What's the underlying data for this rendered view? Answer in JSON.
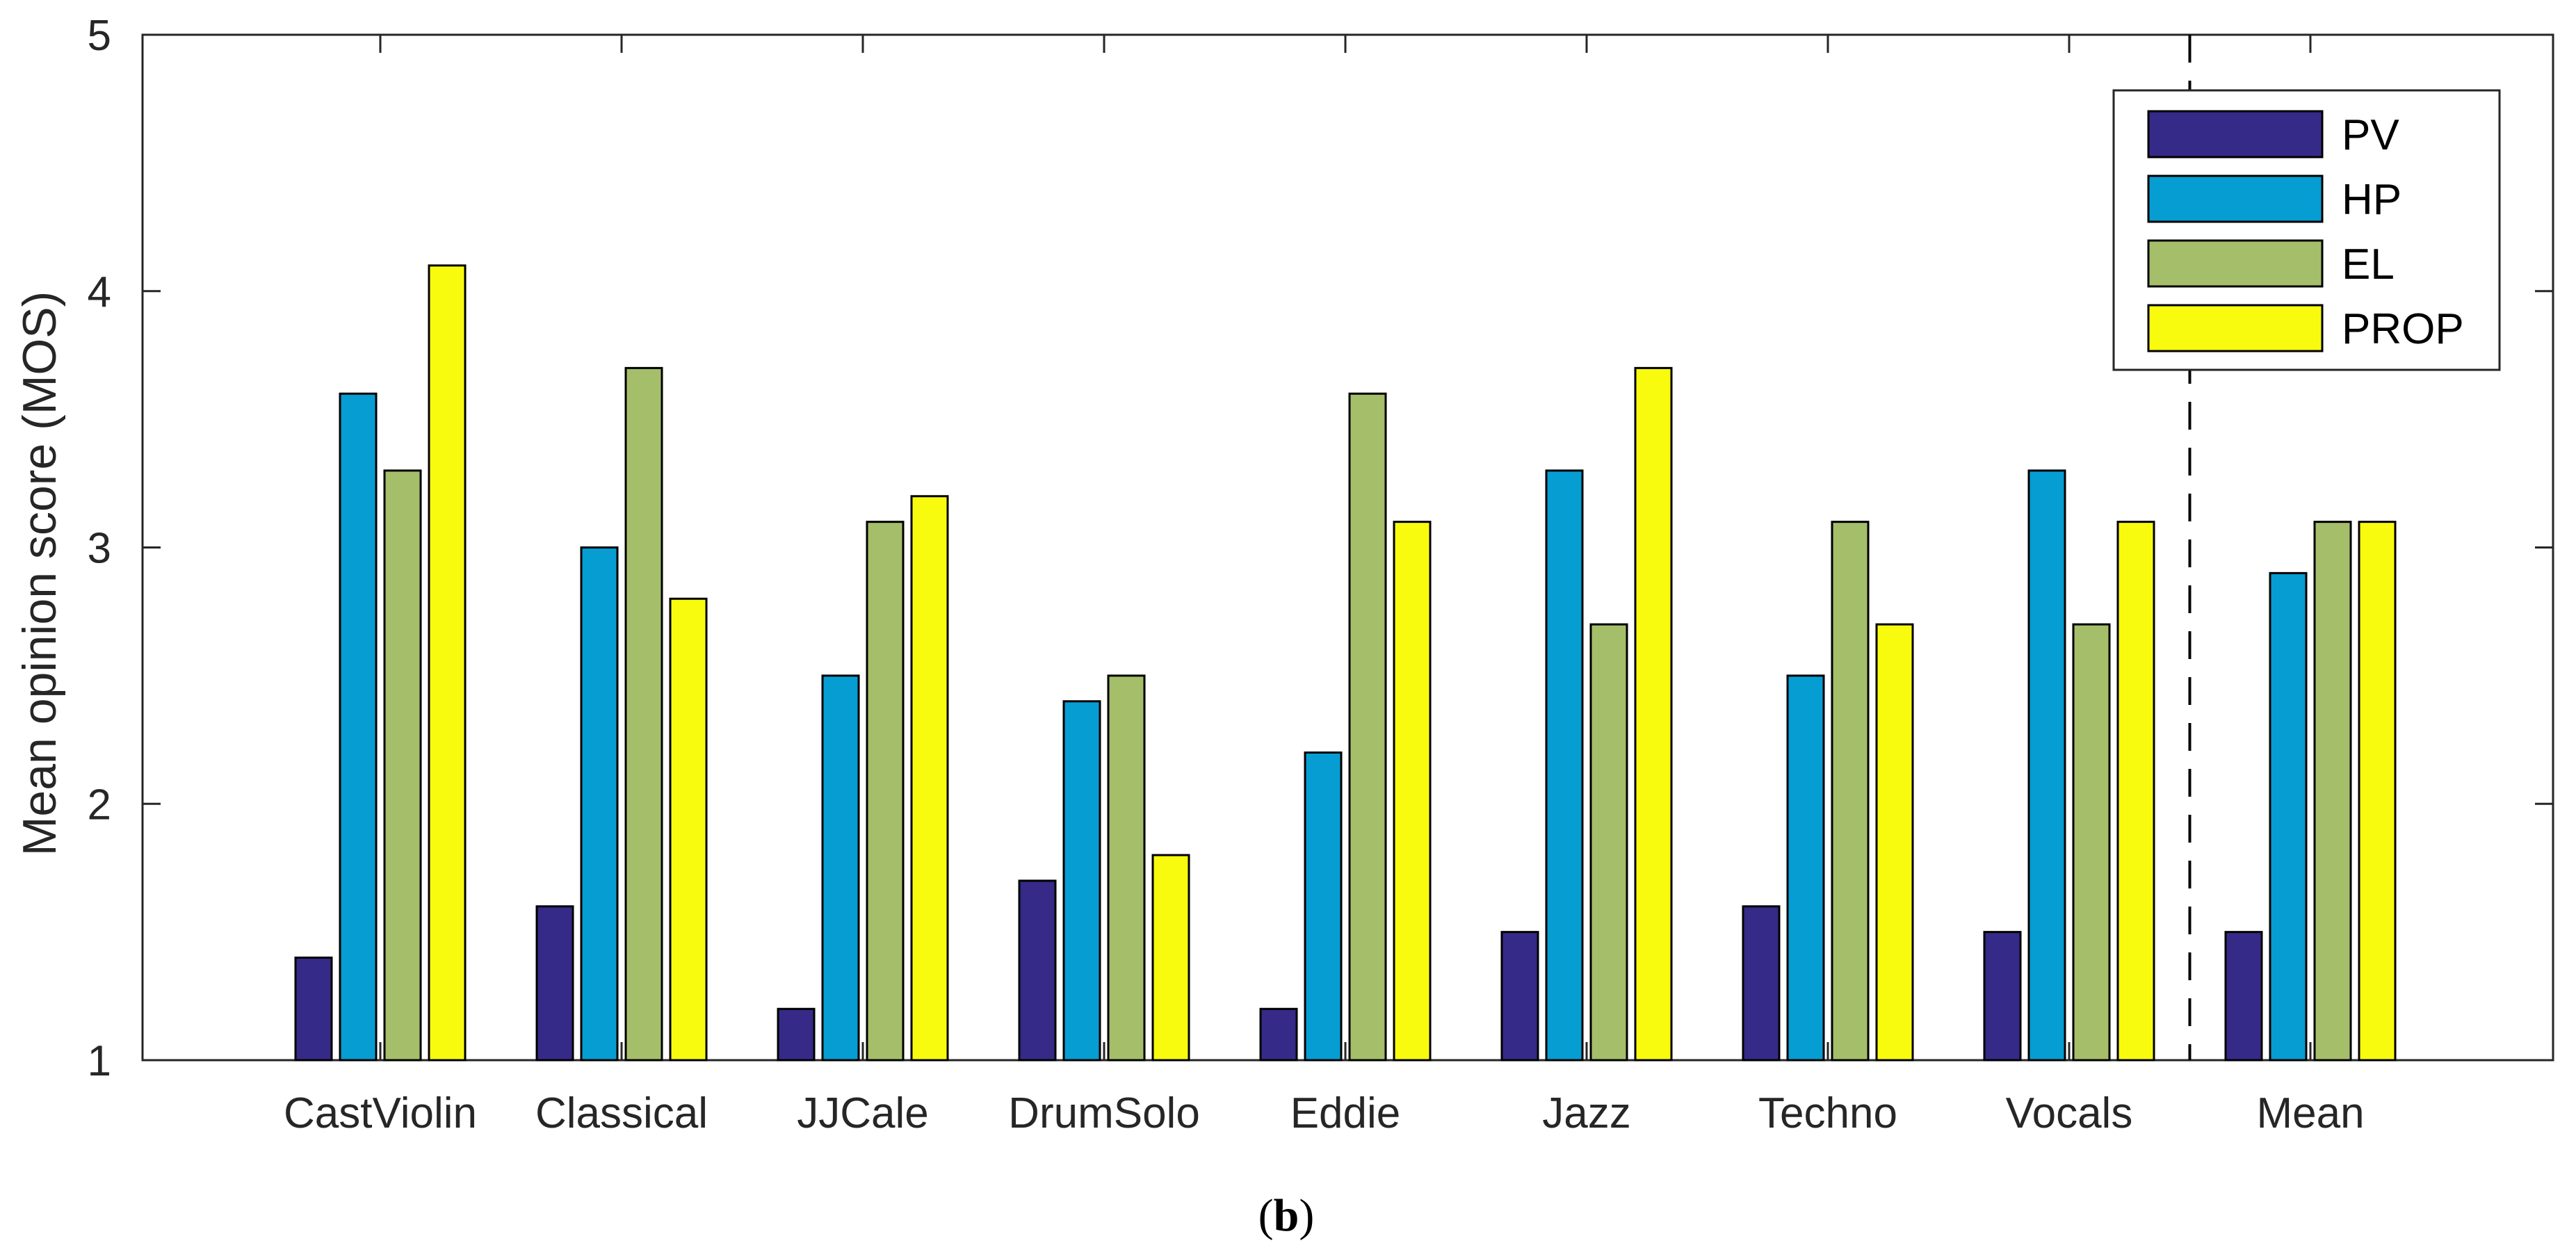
{
  "chart_data": {
    "type": "bar",
    "title": "",
    "xlabel": "",
    "ylabel": "Mean opinion score (MOS)",
    "ylim": [
      1,
      5
    ],
    "yticks": [
      1,
      2,
      3,
      4,
      5
    ],
    "grid": false,
    "legend_position": "top-right",
    "categories": [
      "CastViolin",
      "Classical",
      "JJCale",
      "DrumSolo",
      "Eddie",
      "Jazz",
      "Techno",
      "Vocals",
      "Mean"
    ],
    "series": [
      {
        "name": "PV",
        "color": "#352a87",
        "values": [
          1.4,
          1.6,
          1.2,
          1.7,
          1.2,
          1.5,
          1.6,
          1.5,
          1.5
        ]
      },
      {
        "name": "HP",
        "color": "#069dd2",
        "values": [
          3.6,
          3.0,
          2.5,
          2.4,
          2.2,
          3.3,
          2.5,
          3.3,
          2.9
        ]
      },
      {
        "name": "EL",
        "color": "#a5be6a",
        "values": [
          3.3,
          3.7,
          3.1,
          2.5,
          3.6,
          2.7,
          3.1,
          2.7,
          3.1
        ]
      },
      {
        "name": "PROP",
        "color": "#f9fb0e",
        "values": [
          4.1,
          2.8,
          3.2,
          1.8,
          3.1,
          3.7,
          2.7,
          3.1,
          3.1
        ]
      }
    ],
    "separator_after_category": "Vocals",
    "panel_label": {
      "open": "(",
      "letter": "b",
      "close": ")"
    }
  }
}
